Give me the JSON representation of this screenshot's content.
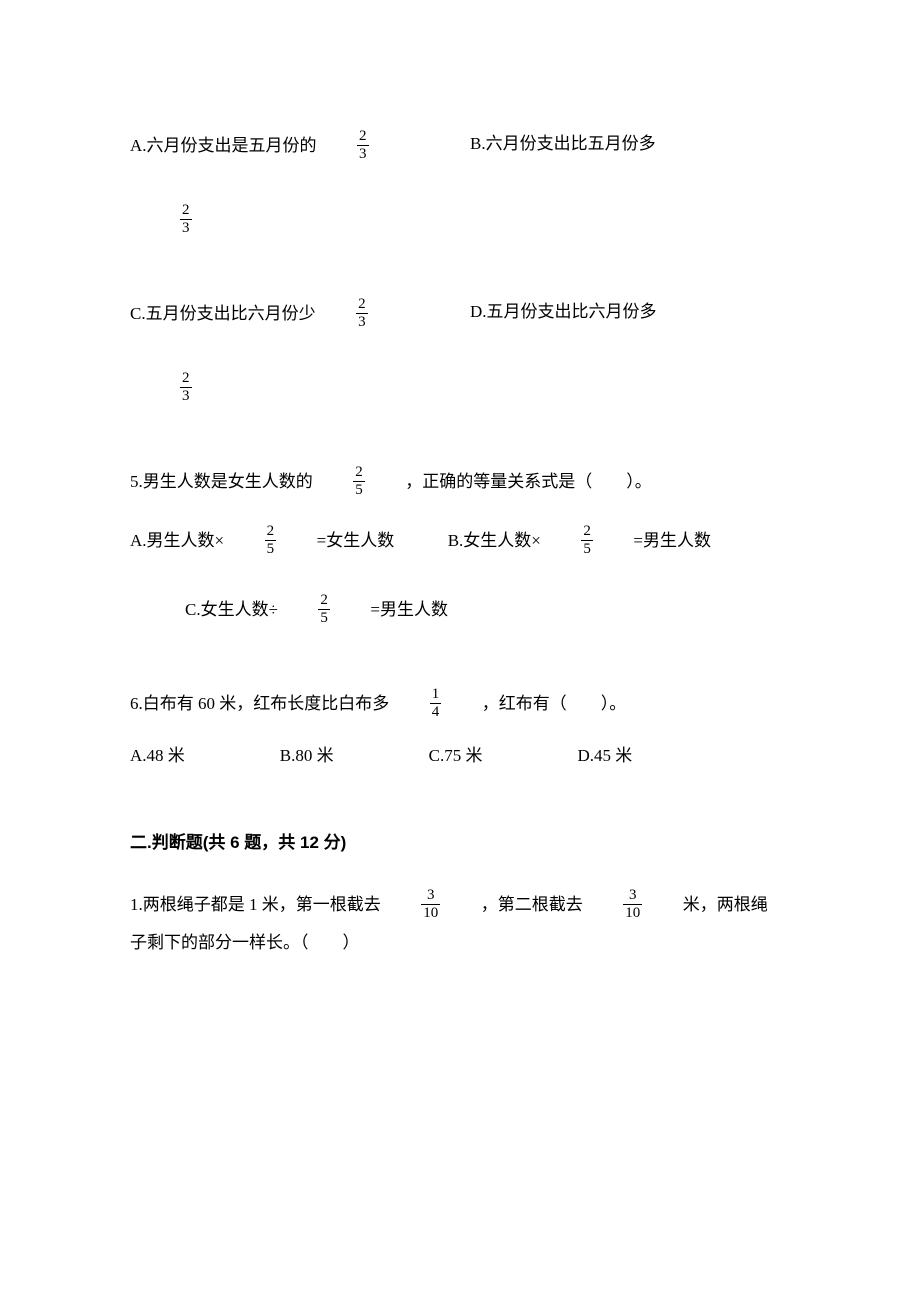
{
  "colors": {
    "background": "#ffffff",
    "text": "#000000"
  },
  "typography": {
    "body_font": "SimSun",
    "heading_font": "SimHei",
    "body_fontsize": 17,
    "fraction_fontsize": 15
  },
  "q4": {
    "optA_prefix": "A.六月份支出是五月份的",
    "optB_text": "B.六月份支出比五月份多",
    "optC_prefix": "C.五月份支出比六月份少",
    "optD_text": "D.五月份支出比六月份多",
    "frac_num": "2",
    "frac_den": "3"
  },
  "q5": {
    "stem_pre": "5.男生人数是女生人数的",
    "stem_post": "，正确的等量关系式是（　　）。",
    "frac_num": "2",
    "frac_den": "5",
    "optA_pre": "A.男生人数×",
    "optA_post": "=女生人数",
    "optB_pre": "B.女生人数×",
    "optB_post": "=男生人数",
    "optC_pre": "C.女生人数÷",
    "optC_post": "=男生人数"
  },
  "q6": {
    "stem_pre": "6.白布有 60 米，红布长度比白布多",
    "stem_post": "，红布有（　　）。",
    "frac_num": "1",
    "frac_den": "4",
    "optA": "A.48 米",
    "optB": "B.80 米",
    "optC": "C.75 米",
    "optD": "D.45 米"
  },
  "sec2_title": "二.判断题(共 6 题，共 12 分)",
  "tf_q1": {
    "stem_pre": "1.两根绳子都是 1 米，第一根截去",
    "stem_mid": "，第二根截去",
    "stem_post": "米，两根绳",
    "stem_line2": "子剩下的部分一样长。（　　）",
    "frac_num": "3",
    "frac_den": "10"
  }
}
